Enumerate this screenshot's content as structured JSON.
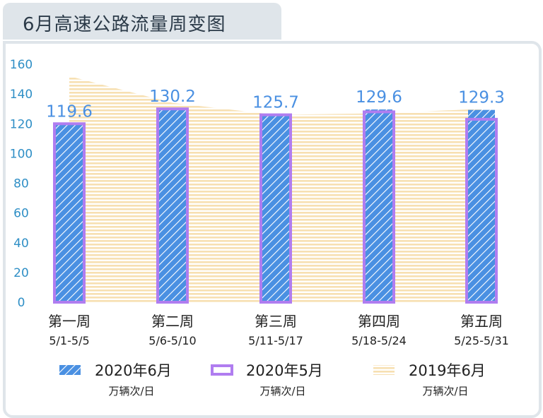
{
  "title": "6月高速公路流量周变图",
  "colors": {
    "series_2020_06": "#4a90e2",
    "series_2020_05": "#b07df0",
    "series_2019_06": "#f7e0b2",
    "axis_text": "#2f8fc6",
    "frame": "#dfe5ea"
  },
  "chart_data": {
    "type": "bar",
    "categories": [
      "第一周",
      "第二周",
      "第三周",
      "第四周",
      "第五周"
    ],
    "date_ranges": [
      "5/1-5/5",
      "5/6-5/10",
      "5/11-5/17",
      "5/18-5/24",
      "5/25-5/31"
    ],
    "ylim": [
      0,
      160
    ],
    "yticks": [
      "0",
      "20",
      "40",
      "60",
      "80",
      "100",
      "120",
      "140",
      "160"
    ],
    "grid": false,
    "legend_position": "bottom",
    "series": [
      {
        "name": "2020年6月",
        "unit": "万辆次/日",
        "style": "hatched-bar",
        "values": [
          119.6,
          130.2,
          125.7,
          129.6,
          129.3
        ],
        "labels": [
          "119.6",
          "130.2",
          "125.7",
          "129.6",
          "129.3"
        ]
      },
      {
        "name": "2020年5月",
        "unit": "万辆次/日",
        "style": "outline-bar",
        "values": [
          120,
          130,
          126,
          128,
          123
        ]
      },
      {
        "name": "2019年6月",
        "unit": "万辆次/日",
        "style": "striped-area",
        "values": [
          152,
          134,
          126,
          127,
          130
        ]
      }
    ]
  }
}
